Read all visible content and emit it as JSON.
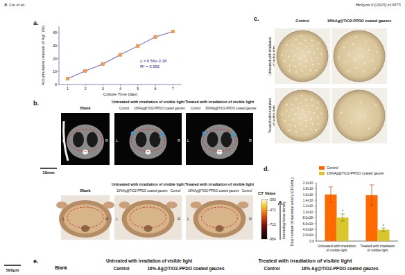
{
  "header": {
    "left": "B. Liu et al.",
    "right": "Heliyon 9 (2023) e19375"
  },
  "panel_labels": [
    "a.",
    "b.",
    "c.",
    "d.",
    "e."
  ],
  "chart_data": [
    {
      "type": "line",
      "x_label": "Culture Time (day)",
      "y_label": "Accumulative release of Ag⁺ (%)",
      "x": [
        1,
        2,
        3,
        4,
        5,
        6,
        7
      ],
      "values": [
        4.5,
        10.5,
        15.8,
        23,
        29.8,
        36.8,
        41
      ],
      "xlim": [
        0.5,
        7.5
      ],
      "xticks": [
        1,
        2,
        3,
        4,
        5,
        6,
        7
      ],
      "ylim": [
        0,
        45
      ],
      "yticks": [
        0,
        10,
        20,
        30,
        40
      ],
      "annotations": [
        "y = 6.56x-3.18",
        "R² = 0.992"
      ],
      "color": "#7b68c8",
      "marker": "square",
      "grid": false
    },
    {
      "type": "bar",
      "y_label": "Total number of bacterial colony (CFU/mL)",
      "categories": [
        "Untreated with irradiation of visible light",
        "Treated with irradiation of visible light"
      ],
      "series": [
        {
          "name": "Control",
          "color": "#ff6a00",
          "values": [
            16000000,
            15800000
          ],
          "errors": [
            2600000,
            3500000
          ]
        },
        {
          "name": "16%Ag@TiO2-PPDO coated gauze",
          "color": "#d8c62c",
          "values": [
            8100000,
            3900000
          ],
          "errors": [
            1200000,
            600000
          ]
        }
      ],
      "ylim": [
        0,
        20000000
      ],
      "yticks": [
        {
          "value": 0,
          "label": "0.0"
        },
        {
          "value": 2000000,
          "label": "2.0x10⁶"
        },
        {
          "value": 4000000,
          "label": "4.0x10⁶"
        },
        {
          "value": 6000000,
          "label": "6.0x10⁶"
        },
        {
          "value": 8000000,
          "label": "8.0x10⁶"
        },
        {
          "value": 10000000,
          "label": "1.0x10⁷"
        },
        {
          "value": 12000000,
          "label": "1.2x10⁷"
        },
        {
          "value": 14000000,
          "label": "1.4x10⁷"
        },
        {
          "value": 16000000,
          "label": "1.6x10⁷"
        },
        {
          "value": 18000000,
          "label": "1.8x10⁷"
        },
        {
          "value": 20000000,
          "label": "2.0x10⁷"
        }
      ],
      "annotations": [
        "*",
        "*"
      ],
      "legend": "top-left",
      "grid": false
    }
  ],
  "panel_b": {
    "row1": [
      {
        "title": "Blank"
      },
      {
        "title": "Untreated with irradiation of visible light",
        "subtitles": [
          "Control",
          "16%Ag@TiO2-PPDO coated gauzes"
        ]
      },
      {
        "title": "Treated with irradiation of visible light",
        "subtitles": [
          "Control",
          "16%Ag@TiO2-PPDO coated gauzes"
        ]
      }
    ],
    "row2": [
      {
        "title": "Blank"
      },
      {
        "title": "Untreated with irradiation of visible light",
        "subtitles": [
          "16%Ag@TiO2-PPDO coated gauzes",
          "Control"
        ]
      },
      {
        "title": "Treated with irradiation of visible light",
        "subtitles": [
          "16%Ag@TiO2-PPDO coated gauzes",
          "Control"
        ]
      }
    ],
    "side_labels": [
      "L",
      "R"
    ],
    "scale_bar": "10mm",
    "colorbar": {
      "title": "CT Value",
      "range": [
        -954,
        -293
      ],
      "ticks": [
        -293,
        -472,
        -713,
        -954
      ],
      "note": "Increasing tissue density"
    }
  },
  "panel_c": {
    "columns": [
      "Control",
      "16%Ag@TiO2-PPDO coated gauzes"
    ],
    "rows": [
      "Untreated with irradiation of visible light",
      "Treated with irradiation of visible light"
    ]
  },
  "panel_e": {
    "scale_bar": "500μm",
    "blank": "Blank",
    "groups": [
      {
        "title": "Untreated with irradiation of visible light",
        "subtitles": [
          "Control",
          "16% Ag@TiO2-PPDO coated gauzes"
        ]
      },
      {
        "title": "Treated with irradiation of visible light",
        "subtitles": [
          "Control",
          "16% Ag@TiO2-PPDO coated gauzes"
        ]
      }
    ]
  }
}
